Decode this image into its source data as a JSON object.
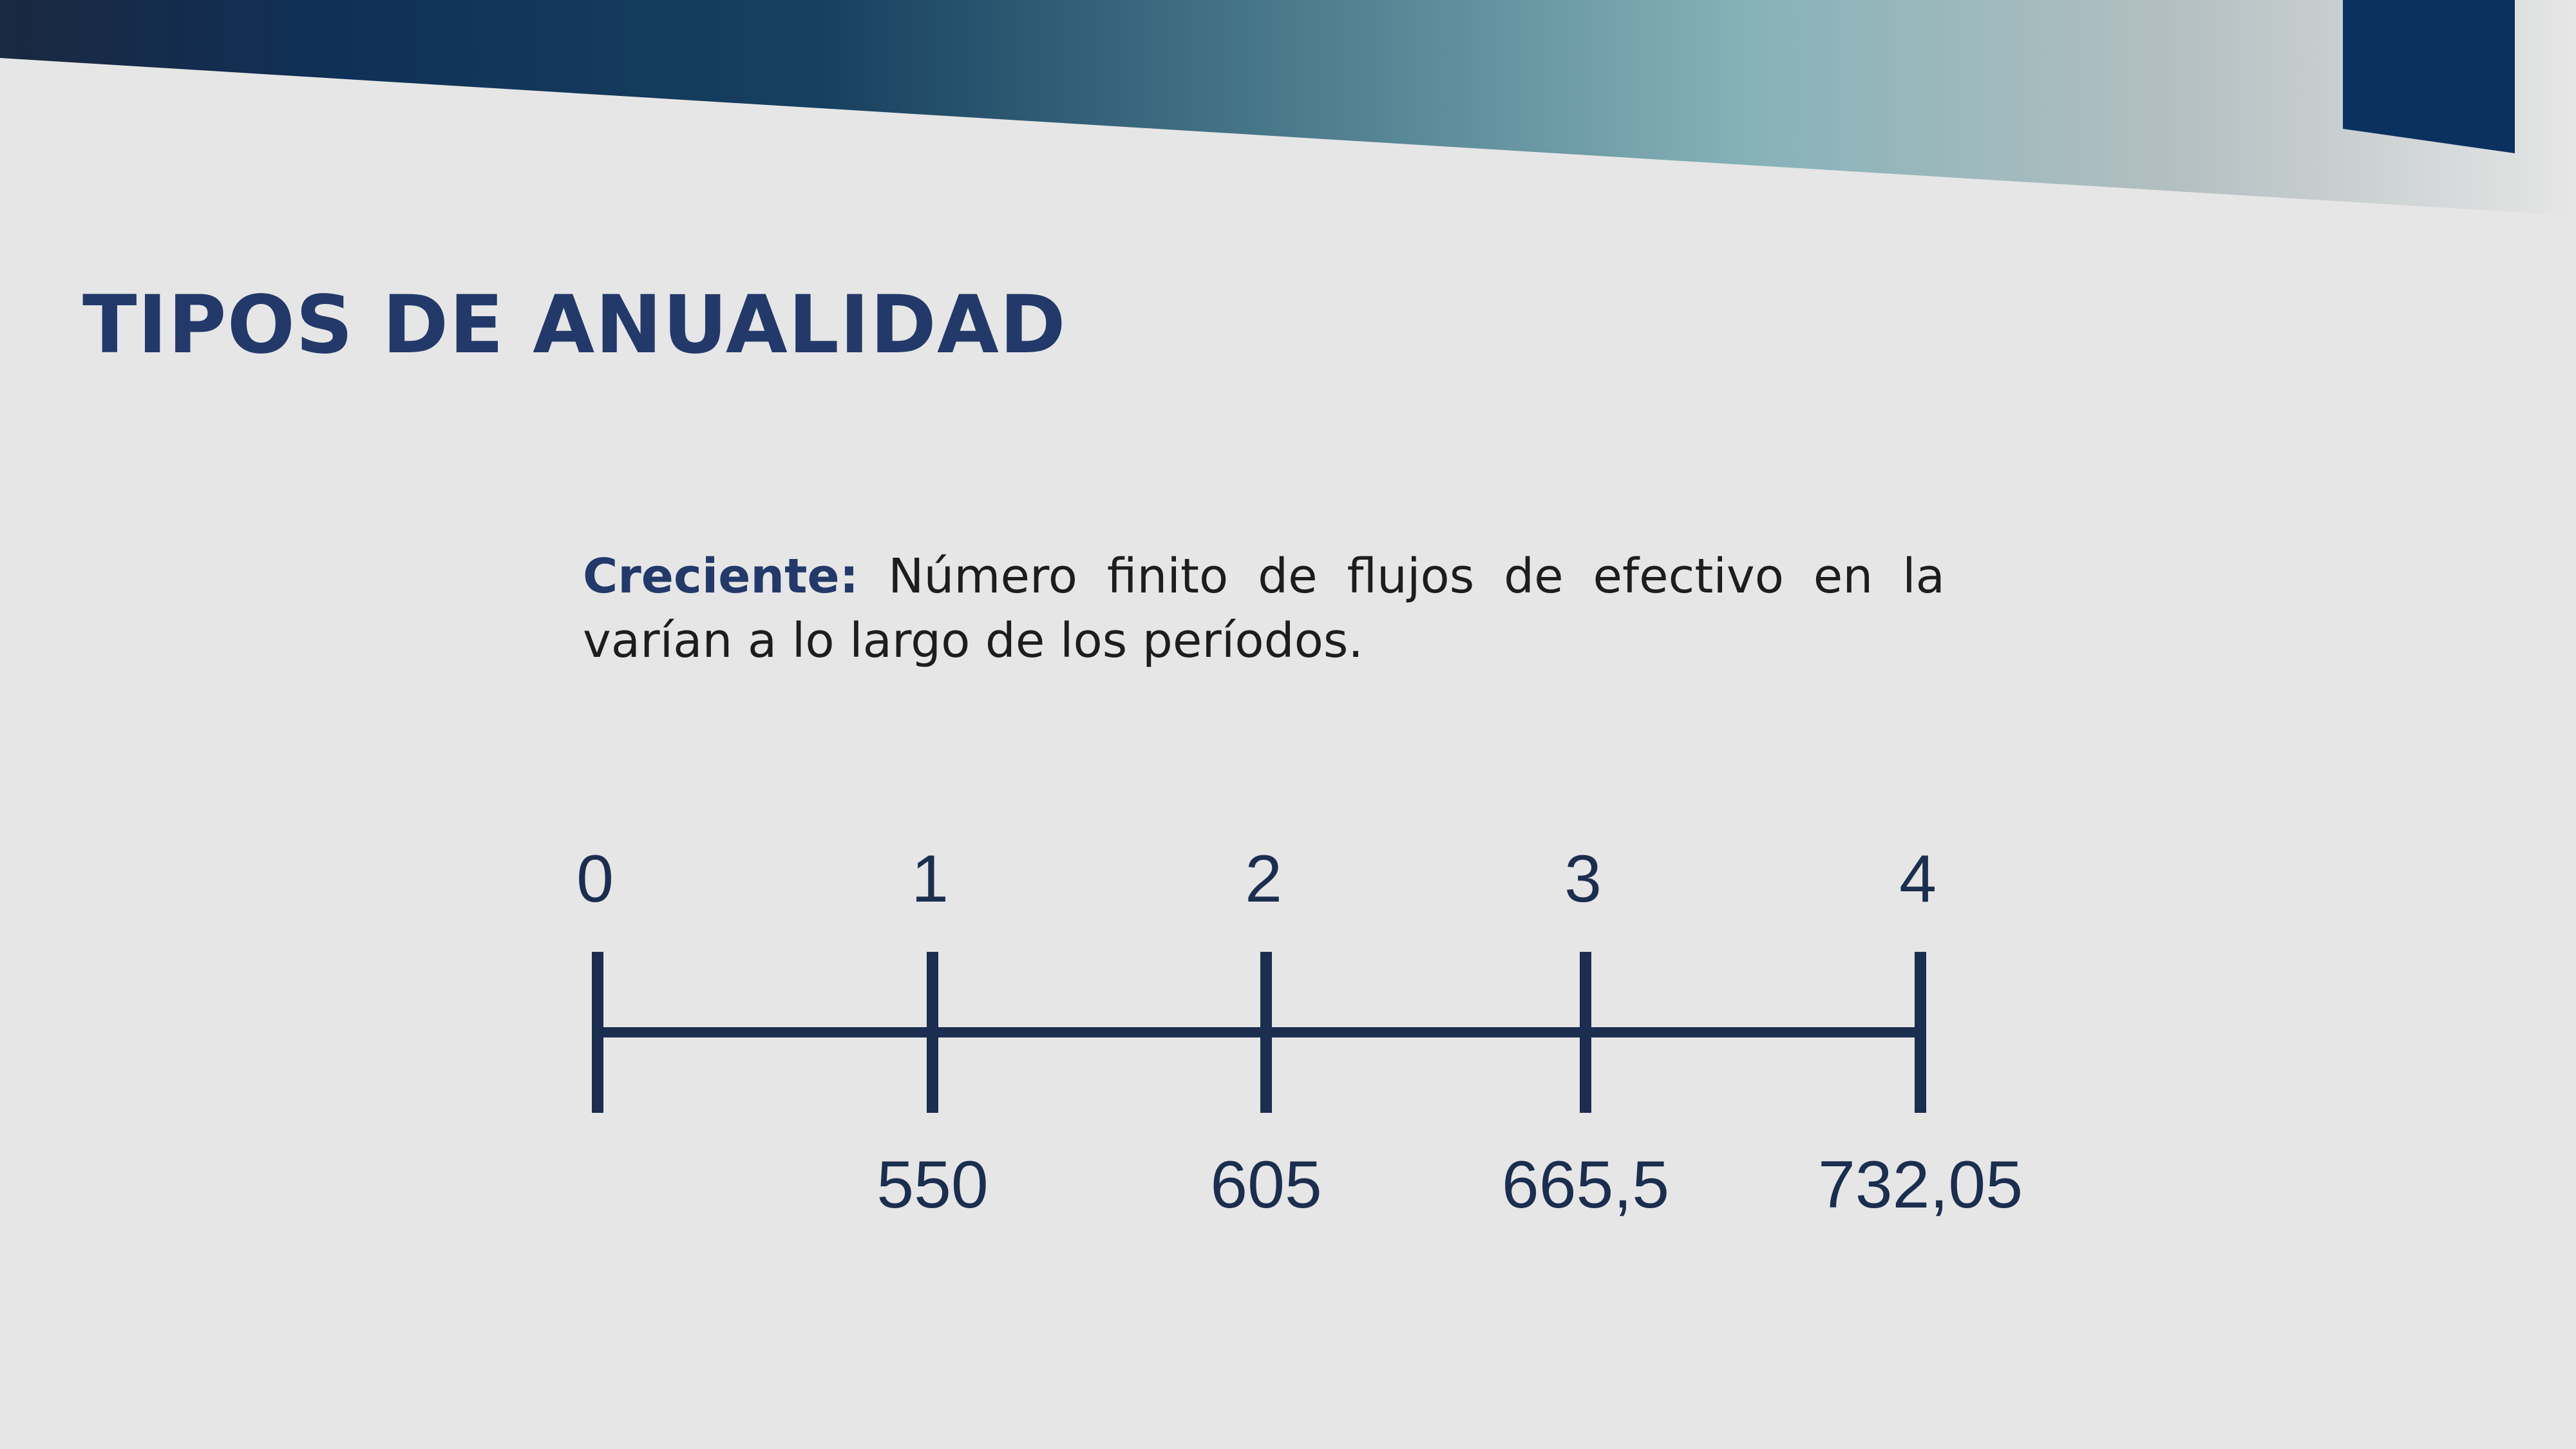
{
  "slide": {
    "title": "TIPOS DE ANUALIDAD",
    "description": {
      "term": "Creciente:",
      "text": " Número finito de flujos de efectivo en la varían a lo largo de los períodos."
    }
  },
  "colors": {
    "background": "#e6e6e6",
    "title": "#22396a",
    "timeline": "#1b2e4f",
    "banner_dark": "#0e2b50",
    "banner_teal": "#86b2b8"
  },
  "timeline": {
    "periods": [
      "0",
      "1",
      "2",
      "3",
      "4"
    ],
    "cash_flows": [
      "",
      "550",
      "605",
      "665,5",
      "732,05"
    ]
  }
}
